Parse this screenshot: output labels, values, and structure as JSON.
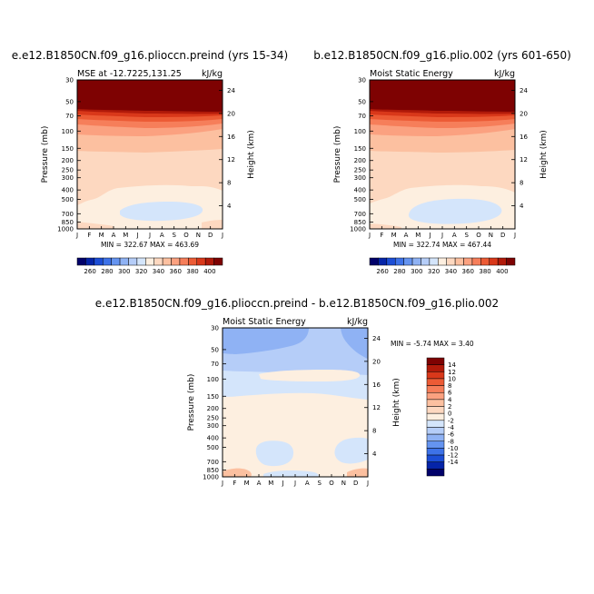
{
  "colors": {
    "abs_scale": [
      "#01016a",
      "#0524a8",
      "#1c4ed6",
      "#3d72e8",
      "#6594f0",
      "#8fb2f4",
      "#b5cdf8",
      "#d4e5fb",
      "#fdefe0",
      "#fdd8c0",
      "#fcc0a0",
      "#fba180",
      "#f67e5a",
      "#ec5b35",
      "#d9381a",
      "#b11a0a",
      "#7e0202"
    ],
    "diff_scale": [
      "#01016a",
      "#0524a8",
      "#1c4ed6",
      "#3d72e8",
      "#6594f0",
      "#8fb2f4",
      "#b5cdf8",
      "#d4e5fb",
      "#fdefe0",
      "#fdd8c0",
      "#fcc0a0",
      "#fba180",
      "#f67e5a",
      "#ec5b35",
      "#d9381a",
      "#b11a0a",
      "#7e0202"
    ]
  },
  "chart_data": [
    {
      "type": "heatmap",
      "title": "e.e12.B1850CN.f09_g16.plioccn.preind (yrs 15-34)",
      "subtitle_left": "MSE at -12.7225,131.25",
      "subtitle_right": "kJ/kg",
      "ylabel": "Pressure (mb)",
      "ylabel_right": "Height (km)",
      "months": [
        "J",
        "F",
        "M",
        "A",
        "M",
        "J",
        "J",
        "A",
        "S",
        "O",
        "N",
        "D",
        "J"
      ],
      "pressure_ticks": [
        "30",
        "50",
        "70",
        "100",
        "150",
        "200",
        "250",
        "300",
        "400",
        "500",
        "700",
        "850",
        "1000"
      ],
      "height_ticks": [
        "4",
        "8",
        "12",
        "16",
        "20",
        "24"
      ],
      "stats": "MIN = 322.67  MAX = 463.69",
      "colorbar_labels": [
        "260",
        "280",
        "300",
        "320",
        "340",
        "360",
        "380",
        "400"
      ],
      "min": 322.67,
      "max": 463.69
    },
    {
      "type": "heatmap",
      "title": "b.e12.B1850CN.f09_g16.plio.002 (yrs 601-650)",
      "subtitle_left": "Moist Static Energy",
      "subtitle_right": "kJ/kg",
      "ylabel": "Pressure (mb)",
      "ylabel_right": "Height (km)",
      "months": [
        "J",
        "F",
        "M",
        "A",
        "M",
        "J",
        "J",
        "A",
        "S",
        "O",
        "N",
        "D",
        "J"
      ],
      "pressure_ticks": [
        "30",
        "50",
        "70",
        "100",
        "150",
        "200",
        "250",
        "300",
        "400",
        "500",
        "700",
        "850",
        "1000"
      ],
      "height_ticks": [
        "4",
        "8",
        "12",
        "16",
        "20",
        "24"
      ],
      "stats": "MIN = 322.74  MAX = 467.44",
      "colorbar_labels": [
        "260",
        "280",
        "300",
        "320",
        "340",
        "360",
        "380",
        "400"
      ],
      "min": 322.74,
      "max": 467.44
    },
    {
      "type": "heatmap",
      "title": "e.e12.B1850CN.f09_g16.plioccn.preind - b.e12.B1850CN.f09_g16.plio.002",
      "subtitle_left": "Moist Static Energy",
      "subtitle_right": "kJ/kg",
      "ylabel": "Pressure (mb)",
      "ylabel_right": "Height (km)",
      "months": [
        "J",
        "F",
        "M",
        "A",
        "M",
        "J",
        "J",
        "A",
        "S",
        "O",
        "N",
        "D",
        "J"
      ],
      "pressure_ticks": [
        "30",
        "50",
        "70",
        "100",
        "150",
        "200",
        "250",
        "300",
        "400",
        "500",
        "700",
        "850",
        "1000"
      ],
      "height_ticks": [
        "4",
        "8",
        "12",
        "16",
        "20",
        "24"
      ],
      "stats": "MIN =   -5.74  MAX =    3.40",
      "colorbar_labels": [
        "14",
        "12",
        "10",
        "8",
        "6",
        "4",
        "2",
        "0",
        "-2",
        "-4",
        "-6",
        "-8",
        "-10",
        "-12",
        "-14"
      ],
      "min": -5.74,
      "max": 3.4
    }
  ]
}
